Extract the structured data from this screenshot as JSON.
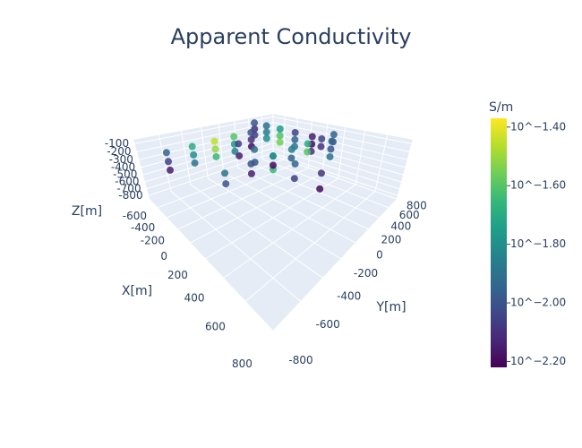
{
  "chart_data": {
    "type": "scatter3d",
    "title": "Apparent Conductivity",
    "x_label": "X[m]",
    "y_label": "Y[m]",
    "z_label": "Z[m]",
    "xlim": [
      -800,
      800
    ],
    "ylim": [
      -800,
      800
    ],
    "zlim": [
      -850,
      -50
    ],
    "xticks": [
      -600,
      -400,
      -200,
      0,
      200,
      400,
      600,
      800
    ],
    "yticks": [
      -800,
      -600,
      -400,
      -200,
      0,
      200,
      400,
      600,
      800
    ],
    "zticks": [
      -800,
      -700,
      -600,
      -500,
      -400,
      -300,
      -200,
      -100
    ],
    "colorscale": "Viridis",
    "colorbar": {
      "title": "S/m",
      "range": [
        -2.22,
        -1.37
      ],
      "ticks": [
        {
          "value": -1.4,
          "label": "10^−1.40"
        },
        {
          "value": -1.6,
          "label": "10^−1.60"
        },
        {
          "value": -1.8,
          "label": "10^−1.80"
        },
        {
          "value": -2.0,
          "label": "10^−2.00"
        },
        {
          "value": -2.2,
          "label": "10^−2.20"
        }
      ]
    },
    "x": [
      -400,
      -400,
      -400,
      -400,
      -400,
      -400,
      -400,
      -400,
      -400,
      -400,
      -400,
      -400,
      -400,
      -400,
      -400,
      -700,
      -500,
      -300,
      -100,
      100,
      300,
      -700,
      -500,
      -300,
      -100,
      100,
      300,
      -700,
      -500,
      -300,
      -100,
      100,
      300,
      200,
      200,
      200,
      200,
      200,
      200,
      200,
      200,
      200,
      200,
      200,
      200,
      200,
      200,
      -200,
      0,
      200,
      400,
      600,
      -200,
      0,
      200,
      400,
      600
    ],
    "y": [
      -700,
      -500,
      -300,
      -100,
      100,
      -700,
      -500,
      -300,
      -100,
      100,
      -700,
      -500,
      -300,
      -100,
      100,
      400,
      400,
      400,
      400,
      400,
      400,
      400,
      400,
      400,
      400,
      400,
      400,
      400,
      400,
      400,
      400,
      400,
      400,
      -600,
      -400,
      -200,
      0,
      200,
      400,
      600,
      -600,
      -400,
      -200,
      0,
      200,
      400,
      600,
      -200,
      -200,
      -200,
      -200,
      -200,
      -200,
      -200,
      -200,
      -200,
      -200
    ],
    "z": [
      -100,
      -100,
      -100,
      -100,
      -100,
      -200,
      -200,
      -200,
      -200,
      -200,
      -300,
      -300,
      -300,
      -300,
      -300,
      -100,
      -100,
      -100,
      -100,
      -100,
      -100,
      -200,
      -200,
      -200,
      -200,
      -200,
      -200,
      -300,
      -300,
      -300,
      -300,
      -300,
      -300,
      -100,
      -100,
      -100,
      -100,
      -100,
      -100,
      -100,
      -200,
      -200,
      -200,
      -200,
      -200,
      -200,
      -200,
      -100,
      -100,
      -100,
      -100,
      -100,
      -250,
      -250,
      -250,
      -250,
      -250
    ],
    "values": [
      -1.95,
      -1.7,
      -1.45,
      -1.6,
      -2.0,
      -2.05,
      -1.8,
      -1.5,
      -1.75,
      -2.1,
      -2.15,
      -1.9,
      -1.65,
      -1.85,
      -2.2,
      -2.0,
      -1.9,
      -1.75,
      -2.05,
      -2.15,
      -1.95,
      -2.1,
      -1.85,
      -1.6,
      -1.95,
      -2.2,
      -2.0,
      -2.05,
      -1.8,
      -1.55,
      -1.9,
      -2.1,
      -1.9,
      -1.9,
      -2.0,
      -2.1,
      -1.85,
      -1.7,
      -2.05,
      -1.95,
      -2.0,
      -2.15,
      -2.2,
      -1.95,
      -1.6,
      -2.1,
      -2.0,
      -2.05,
      -1.9,
      -1.75,
      -1.95,
      -2.1,
      -2.15,
      -2.0,
      -1.65,
      -2.05,
      -2.2
    ]
  }
}
